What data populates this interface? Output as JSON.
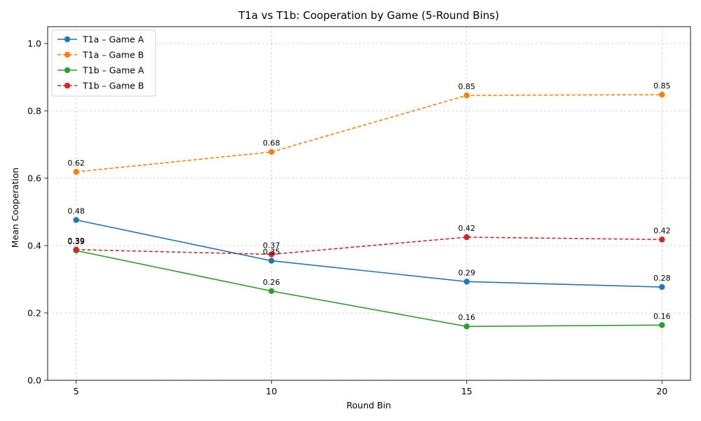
{
  "chart_data": {
    "type": "line",
    "title": "T1a vs T1b: Cooperation by Game (5-Round Bins)",
    "xlabel": "Round Bin",
    "ylabel": "Mean Cooperation",
    "x": [
      5,
      10,
      15,
      20
    ],
    "x_ticks": [
      "5",
      "10",
      "15",
      "20"
    ],
    "ylim": [
      0,
      1.05
    ],
    "y_ticks": [
      "0.0",
      "0.2",
      "0.4",
      "0.6",
      "0.8",
      "1.0"
    ],
    "grid": true,
    "legend_position": "top-left",
    "series": [
      {
        "name": "T1a – Game A",
        "values": [
          0.476,
          0.355,
          0.293,
          0.277
        ],
        "labels": [
          "0.48",
          "0.35",
          "0.29",
          "0.28"
        ],
        "color": "#1f77b4",
        "dashed": false
      },
      {
        "name": "T1a – Game B",
        "values": [
          0.619,
          0.678,
          0.846,
          0.848
        ],
        "labels": [
          "0.62",
          "0.68",
          "0.85",
          "0.85"
        ],
        "color": "#ff7f0e",
        "dashed": true
      },
      {
        "name": "T1b – Game A",
        "values": [
          0.385,
          0.265,
          0.16,
          0.164
        ],
        "labels": [
          "0.39",
          "0.26",
          "0.16",
          "0.16"
        ],
        "color": "#2ca02c",
        "dashed": false
      },
      {
        "name": "T1b – Game B",
        "values": [
          0.388,
          0.374,
          0.425,
          0.418
        ],
        "labels": [
          "0.39",
          "0.37",
          "0.42",
          "0.42"
        ],
        "color": "#d62728",
        "dashed": true
      }
    ]
  }
}
